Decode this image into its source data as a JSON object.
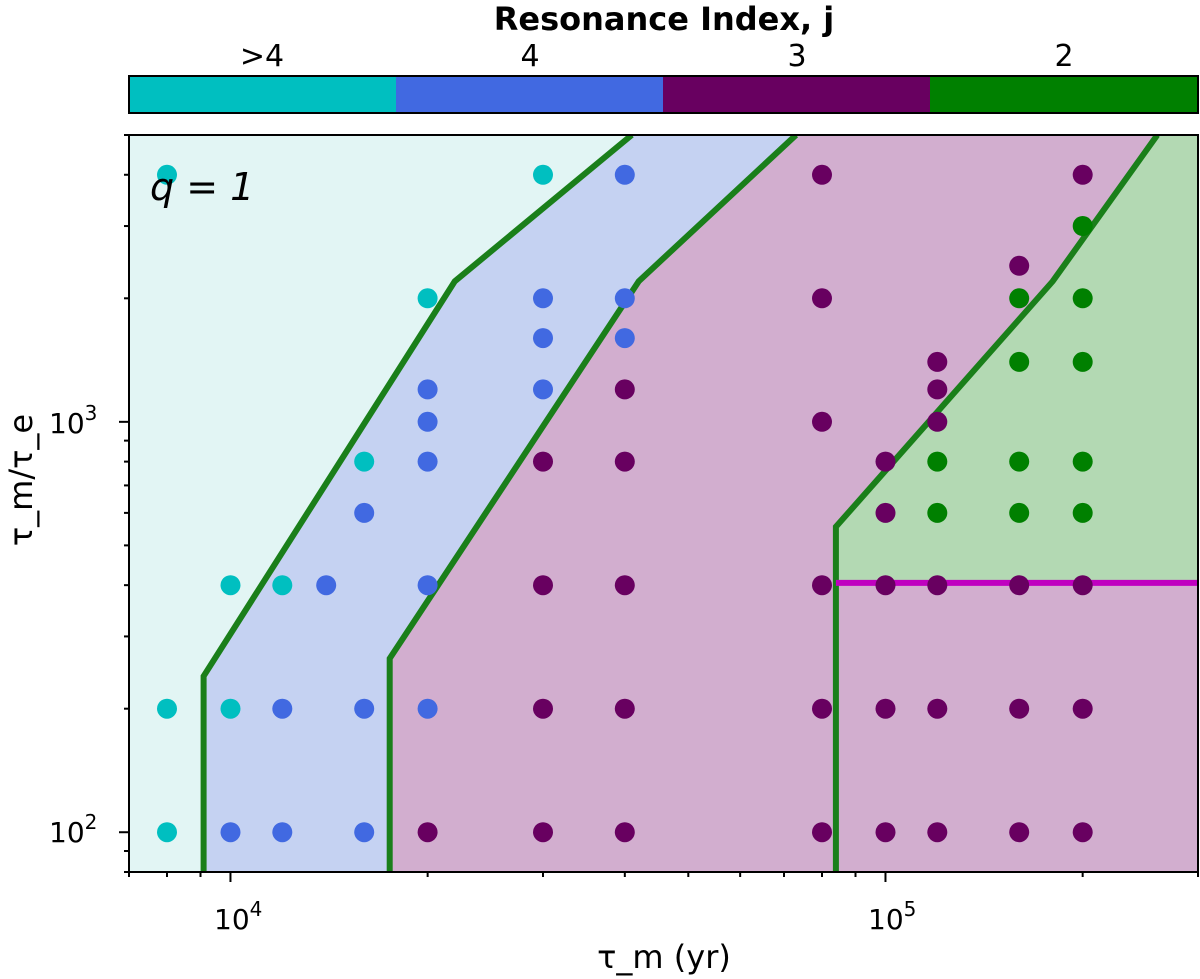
{
  "chart_data": {
    "type": "scatter",
    "annotation": "q = 1",
    "xlabel": "τ_m (yr)",
    "ylabel": "τ_m/τ_e",
    "xscale": "log",
    "yscale": "log",
    "xlim": [
      7000,
      300000
    ],
    "ylim": [
      80,
      5000
    ],
    "x_tick_labels": [
      {
        "value": 10000,
        "base": "10",
        "exp": "4"
      },
      {
        "value": 100000,
        "base": "10",
        "exp": "5"
      }
    ],
    "y_tick_labels": [
      {
        "value": 100,
        "base": "10",
        "exp": "2"
      },
      {
        "value": 1000,
        "base": "10",
        "exp": "3"
      }
    ],
    "colorbar": {
      "title": "Resonance Index, j",
      "categories": [
        {
          "label": ">4",
          "color": "#00bfc0"
        },
        {
          "label": "4",
          "color": "#4169e1"
        },
        {
          "label": "3",
          "color": "#680060"
        },
        {
          "label": "2",
          "color": "#008000"
        }
      ]
    },
    "regions": [
      {
        "name": "j>4",
        "fill": "#e2f5f4"
      },
      {
        "name": "j=4",
        "fill": "#c5d2f2"
      },
      {
        "name": "j=3",
        "fill": "#d2aecf"
      },
      {
        "name": "j=2",
        "fill": "#b3d9b3"
      }
    ],
    "boundaries": [
      {
        "color": "#1a7f1a",
        "points": [
          [
            9100,
            80
          ],
          [
            9100,
            240
          ],
          [
            22000,
            2200
          ],
          [
            41000,
            5000
          ]
        ]
      },
      {
        "color": "#1a7f1a",
        "points": [
          [
            17500,
            80
          ],
          [
            17500,
            265
          ],
          [
            42000,
            2200
          ],
          [
            73000,
            5000
          ]
        ]
      },
      {
        "color": "#1a7f1a",
        "points": [
          [
            84000,
            80
          ],
          [
            84000,
            555
          ],
          [
            180000,
            2200
          ],
          [
            260000,
            5000
          ]
        ]
      },
      {
        "color": "#c000c0",
        "points": [
          [
            84000,
            405
          ],
          [
            300000,
            405
          ]
        ]
      }
    ],
    "series": [
      {
        "name": ">4",
        "color": "#00bfc0",
        "points": [
          [
            8000,
            4000
          ],
          [
            8000,
            100
          ],
          [
            8000,
            200
          ],
          [
            10000,
            400
          ],
          [
            10000,
            200
          ],
          [
            12000,
            400
          ],
          [
            16000,
            800
          ],
          [
            20000,
            2000
          ],
          [
            30000,
            4000
          ]
        ]
      },
      {
        "name": "4",
        "color": "#4169e1",
        "points": [
          [
            10000,
            100
          ],
          [
            12000,
            100
          ],
          [
            12000,
            200
          ],
          [
            14000,
            400
          ],
          [
            16000,
            600
          ],
          [
            16000,
            200
          ],
          [
            16000,
            100
          ],
          [
            20000,
            1200
          ],
          [
            20000,
            1000
          ],
          [
            20000,
            800
          ],
          [
            20000,
            400
          ],
          [
            20000,
            200
          ],
          [
            30000,
            2000
          ],
          [
            30000,
            1600
          ],
          [
            30000,
            1200
          ],
          [
            40000,
            4000
          ],
          [
            40000,
            2000
          ],
          [
            40000,
            1600
          ]
        ]
      },
      {
        "name": "3",
        "color": "#680060",
        "points": [
          [
            20000,
            100
          ],
          [
            30000,
            800
          ],
          [
            30000,
            400
          ],
          [
            30000,
            200
          ],
          [
            30000,
            100
          ],
          [
            40000,
            1200
          ],
          [
            40000,
            800
          ],
          [
            40000,
            400
          ],
          [
            40000,
            200
          ],
          [
            40000,
            100
          ],
          [
            80000,
            4000
          ],
          [
            80000,
            2000
          ],
          [
            80000,
            1000
          ],
          [
            80000,
            400
          ],
          [
            80000,
            200
          ],
          [
            80000,
            100
          ],
          [
            100000,
            800
          ],
          [
            100000,
            600
          ],
          [
            100000,
            400
          ],
          [
            100000,
            200
          ],
          [
            100000,
            100
          ],
          [
            120000,
            1400
          ],
          [
            120000,
            1200
          ],
          [
            120000,
            1000
          ],
          [
            120000,
            400
          ],
          [
            120000,
            200
          ],
          [
            120000,
            100
          ],
          [
            160000,
            2400
          ],
          [
            160000,
            400
          ],
          [
            160000,
            200
          ],
          [
            160000,
            100
          ],
          [
            200000,
            4000
          ],
          [
            200000,
            400
          ],
          [
            200000,
            200
          ],
          [
            200000,
            100
          ]
        ]
      },
      {
        "name": "2",
        "color": "#008000",
        "points": [
          [
            120000,
            800
          ],
          [
            120000,
            600
          ],
          [
            160000,
            2000
          ],
          [
            160000,
            1400
          ],
          [
            160000,
            800
          ],
          [
            160000,
            600
          ],
          [
            200000,
            3000
          ],
          [
            200000,
            2000
          ],
          [
            200000,
            1400
          ],
          [
            200000,
            800
          ],
          [
            200000,
            600
          ]
        ]
      }
    ]
  }
}
